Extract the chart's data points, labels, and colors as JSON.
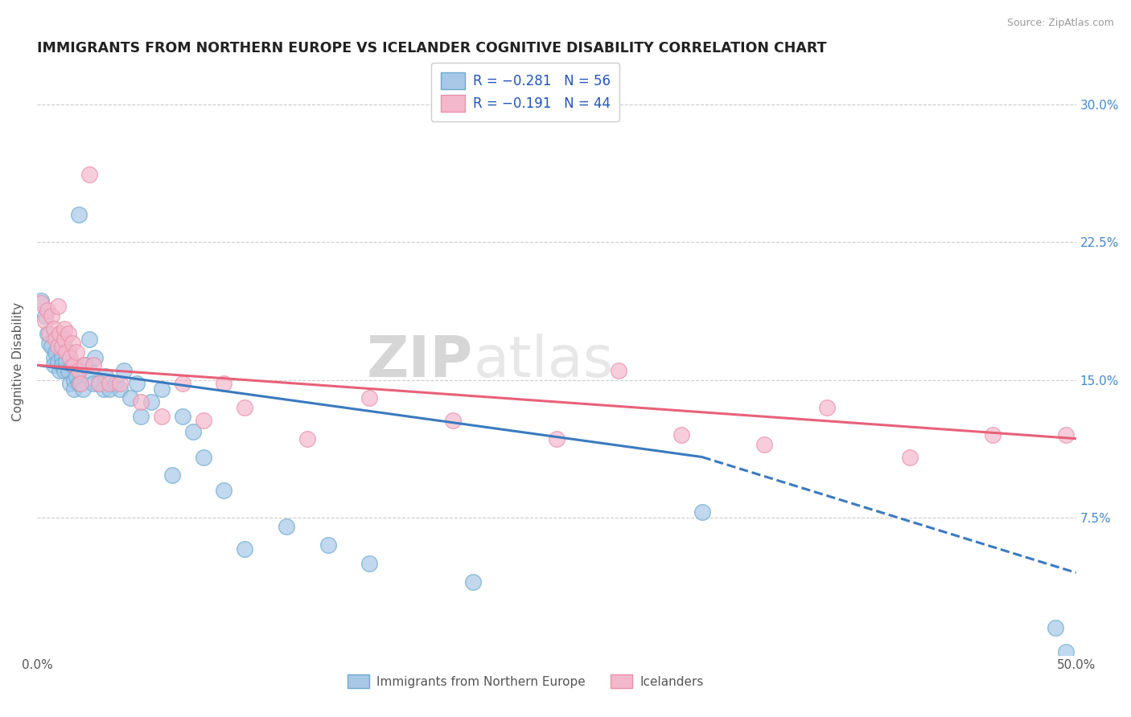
{
  "title": "IMMIGRANTS FROM NORTHERN EUROPE VS ICELANDER COGNITIVE DISABILITY CORRELATION CHART",
  "source": "Source: ZipAtlas.com",
  "ylabel": "Cognitive Disability",
  "xlim": [
    0.0,
    0.5
  ],
  "ylim": [
    0.0,
    0.32
  ],
  "color_blue": "#a8c8e8",
  "color_pink": "#f4b8cc",
  "color_blue_line": "#3a7abf",
  "color_pink_line": "#e8607a",
  "color_blue_edge": "#6aaad0",
  "color_pink_edge": "#e890a8",
  "watermark_zip": "ZIP",
  "watermark_atlas": "atlas",
  "blue_scatter_x": [
    0.002,
    0.004,
    0.005,
    0.006,
    0.007,
    0.008,
    0.008,
    0.009,
    0.01,
    0.01,
    0.011,
    0.012,
    0.012,
    0.013,
    0.013,
    0.014,
    0.015,
    0.015,
    0.016,
    0.017,
    0.018,
    0.018,
    0.019,
    0.02,
    0.02,
    0.022,
    0.023,
    0.025,
    0.025,
    0.027,
    0.028,
    0.03,
    0.032,
    0.033,
    0.035,
    0.038,
    0.04,
    0.042,
    0.045,
    0.048,
    0.05,
    0.055,
    0.06,
    0.065,
    0.07,
    0.075,
    0.08,
    0.09,
    0.1,
    0.12,
    0.14,
    0.16,
    0.21,
    0.32,
    0.49,
    0.495
  ],
  "blue_scatter_y": [
    0.193,
    0.185,
    0.175,
    0.17,
    0.168,
    0.162,
    0.158,
    0.165,
    0.16,
    0.172,
    0.155,
    0.162,
    0.158,
    0.168,
    0.155,
    0.16,
    0.155,
    0.165,
    0.148,
    0.158,
    0.15,
    0.145,
    0.152,
    0.148,
    0.24,
    0.145,
    0.158,
    0.172,
    0.155,
    0.148,
    0.162,
    0.148,
    0.145,
    0.152,
    0.145,
    0.148,
    0.145,
    0.155,
    0.14,
    0.148,
    0.13,
    0.138,
    0.145,
    0.098,
    0.13,
    0.122,
    0.108,
    0.09,
    0.058,
    0.07,
    0.06,
    0.05,
    0.04,
    0.078,
    0.015,
    0.002
  ],
  "pink_scatter_x": [
    0.002,
    0.004,
    0.005,
    0.006,
    0.007,
    0.008,
    0.009,
    0.01,
    0.01,
    0.011,
    0.012,
    0.013,
    0.013,
    0.014,
    0.015,
    0.016,
    0.017,
    0.018,
    0.019,
    0.02,
    0.021,
    0.023,
    0.025,
    0.027,
    0.03,
    0.035,
    0.04,
    0.05,
    0.06,
    0.07,
    0.08,
    0.09,
    0.1,
    0.13,
    0.16,
    0.2,
    0.25,
    0.31,
    0.38,
    0.42,
    0.46,
    0.495,
    0.35,
    0.28
  ],
  "pink_scatter_y": [
    0.192,
    0.182,
    0.188,
    0.175,
    0.185,
    0.178,
    0.172,
    0.168,
    0.19,
    0.175,
    0.168,
    0.172,
    0.178,
    0.165,
    0.175,
    0.162,
    0.17,
    0.158,
    0.165,
    0.155,
    0.148,
    0.158,
    0.262,
    0.158,
    0.148,
    0.148,
    0.148,
    0.138,
    0.13,
    0.148,
    0.128,
    0.148,
    0.135,
    0.118,
    0.14,
    0.128,
    0.118,
    0.12,
    0.135,
    0.108,
    0.12,
    0.12,
    0.115,
    0.155
  ],
  "blue_line_y_start": 0.158,
  "blue_line_solid_end_x": 0.32,
  "blue_line_solid_end_y": 0.108,
  "blue_line_dash_end_y": 0.045,
  "pink_line_y_start": 0.158,
  "pink_line_y_end": 0.118
}
